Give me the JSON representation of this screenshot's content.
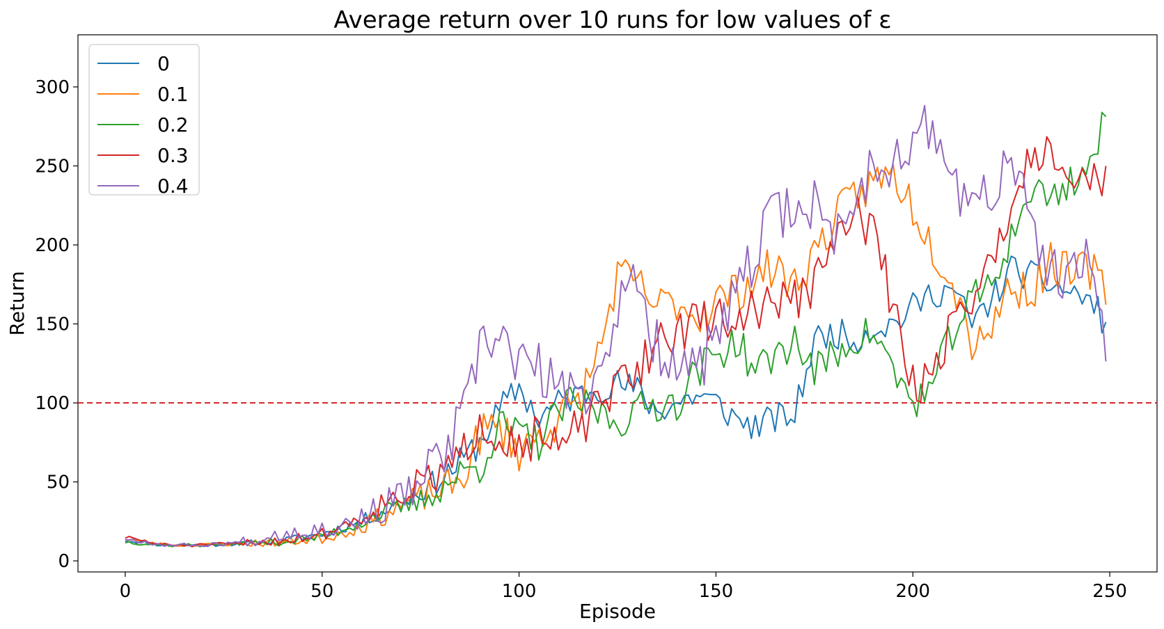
{
  "chart_data": {
    "type": "line",
    "title": "Average return over 10 runs for low values of ε",
    "xlabel": "Episode",
    "ylabel": "Return",
    "xlim": [
      -12,
      262
    ],
    "ylim": [
      -7,
      333
    ],
    "xticks": [
      0,
      50,
      100,
      150,
      200,
      250
    ],
    "yticks": [
      0,
      50,
      100,
      150,
      200,
      250,
      300
    ],
    "grid": false,
    "legend": "top-left",
    "reference_line": {
      "y": 100,
      "color": "#d62728",
      "style": "dashed"
    },
    "x_knots": [
      0,
      10,
      20,
      30,
      40,
      50,
      55,
      60,
      65,
      70,
      75,
      80,
      85,
      90,
      95,
      100,
      105,
      110,
      115,
      120,
      125,
      130,
      135,
      140,
      145,
      150,
      155,
      160,
      165,
      170,
      175,
      180,
      185,
      190,
      195,
      200,
      205,
      210,
      215,
      220,
      225,
      230,
      235,
      240,
      245,
      249
    ],
    "series": [
      {
        "name": "0",
        "color": "#1f77b4",
        "noise": 10,
        "seed": 11,
        "knots": [
          13,
          10,
          10,
          11,
          13,
          17,
          21,
          25,
          31,
          37,
          44,
          52,
          62,
          75,
          95,
          110,
          90,
          100,
          105,
          110,
          112,
          108,
          95,
          100,
          105,
          100,
          90,
          85,
          90,
          92,
          140,
          145,
          140,
          148,
          150,
          160,
          170,
          172,
          150,
          165,
          185,
          180,
          175,
          170,
          165,
          150
        ]
      },
      {
        "name": "0.1",
        "color": "#ff7f0e",
        "noise": 14,
        "seed": 23,
        "knots": [
          14,
          10,
          10,
          11,
          12,
          14,
          18,
          22,
          28,
          35,
          40,
          45,
          50,
          80,
          85,
          70,
          80,
          90,
          100,
          130,
          180,
          175,
          160,
          165,
          155,
          165,
          170,
          180,
          185,
          175,
          195,
          215,
          230,
          240,
          245,
          225,
          200,
          180,
          140,
          150,
          175,
          170,
          190,
          180,
          185,
          172
        ]
      },
      {
        "name": "0.2",
        "color": "#2ca02c",
        "noise": 12,
        "seed": 37,
        "knots": [
          12,
          10,
          10,
          11,
          12,
          15,
          20,
          25,
          30,
          33,
          38,
          45,
          55,
          60,
          85,
          80,
          75,
          95,
          100,
          95,
          88,
          95,
          100,
          100,
          120,
          130,
          140,
          120,
          130,
          140,
          120,
          130,
          140,
          145,
          120,
          100,
          110,
          145,
          165,
          175,
          205,
          235,
          230,
          240,
          250,
          280
        ]
      },
      {
        "name": "0.3",
        "color": "#d62728",
        "noise": 14,
        "seed": 51,
        "knots": [
          15,
          10,
          10,
          11,
          13,
          17,
          22,
          28,
          36,
          43,
          48,
          55,
          62,
          90,
          80,
          75,
          78,
          70,
          85,
          95,
          110,
          120,
          140,
          145,
          150,
          155,
          150,
          160,
          165,
          165,
          175,
          200,
          220,
          210,
          160,
          110,
          120,
          150,
          170,
          185,
          230,
          255,
          265,
          245,
          240,
          245
        ]
      },
      {
        "name": "0.4",
        "color": "#9467bd",
        "noise": 18,
        "seed": 67,
        "knots": [
          14,
          10,
          10,
          12,
          18,
          20,
          23,
          27,
          33,
          40,
          50,
          65,
          85,
          130,
          145,
          125,
          120,
          110,
          100,
          120,
          160,
          175,
          135,
          130,
          120,
          140,
          165,
          195,
          220,
          225,
          225,
          205,
          230,
          250,
          255,
          265,
          275,
          240,
          225,
          235,
          250,
          215,
          180,
          175,
          195,
          130
        ]
      }
    ]
  }
}
